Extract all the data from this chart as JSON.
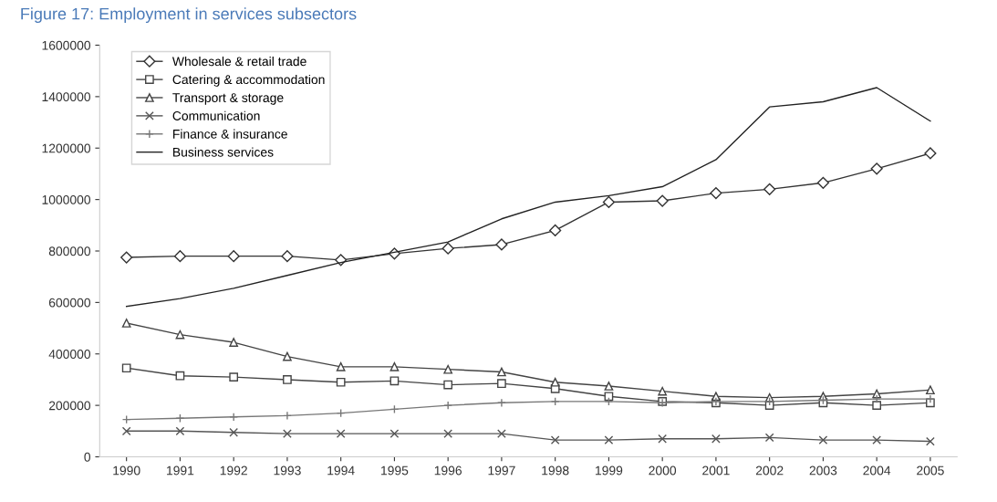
{
  "chart_data": {
    "type": "line",
    "title": "Figure 17: Employment in services subsectors",
    "categories": [
      "1990",
      "1991",
      "1992",
      "1993",
      "1994",
      "1995",
      "1996",
      "1997",
      "1998",
      "1999",
      "2000",
      "2001",
      "2002",
      "2003",
      "2004",
      "2005"
    ],
    "ylim": [
      0,
      1600000
    ],
    "yticks": [
      0,
      200000,
      400000,
      600000,
      800000,
      1000000,
      1200000,
      1400000,
      1600000
    ],
    "grid": false,
    "legend": "top left",
    "series": [
      {
        "name": "Wholesale & retail trade",
        "color": "#333333",
        "marker": "diamond",
        "values": [
          775000,
          780000,
          780000,
          780000,
          765000,
          790000,
          810000,
          825000,
          880000,
          990000,
          995000,
          1025000,
          1040000,
          1065000,
          1120000,
          1180000
        ]
      },
      {
        "name": "Catering & accommodation",
        "color": "#444444",
        "marker": "square",
        "values": [
          345000,
          315000,
          310000,
          300000,
          290000,
          295000,
          280000,
          285000,
          265000,
          235000,
          215000,
          210000,
          200000,
          210000,
          200000,
          210000
        ]
      },
      {
        "name": "Transport & storage",
        "color": "#444444",
        "marker": "triangle",
        "values": [
          520000,
          475000,
          445000,
          390000,
          350000,
          350000,
          340000,
          330000,
          290000,
          275000,
          255000,
          235000,
          230000,
          235000,
          245000,
          260000
        ]
      },
      {
        "name": "Communication",
        "color": "#555555",
        "marker": "cross",
        "values": [
          100000,
          100000,
          95000,
          90000,
          90000,
          90000,
          90000,
          90000,
          65000,
          65000,
          70000,
          70000,
          75000,
          65000,
          65000,
          60000
        ]
      },
      {
        "name": "Finance & insurance",
        "color": "#777777",
        "marker": "plus",
        "values": [
          145000,
          150000,
          155000,
          160000,
          170000,
          185000,
          200000,
          210000,
          215000,
          215000,
          210000,
          215000,
          215000,
          220000,
          225000,
          225000
        ]
      },
      {
        "name": "Business services",
        "color": "#222222",
        "marker": "none",
        "values": [
          585000,
          615000,
          655000,
          705000,
          755000,
          795000,
          835000,
          925000,
          990000,
          1015000,
          1050000,
          1155000,
          1360000,
          1380000,
          1435000,
          1305000
        ]
      }
    ]
  }
}
